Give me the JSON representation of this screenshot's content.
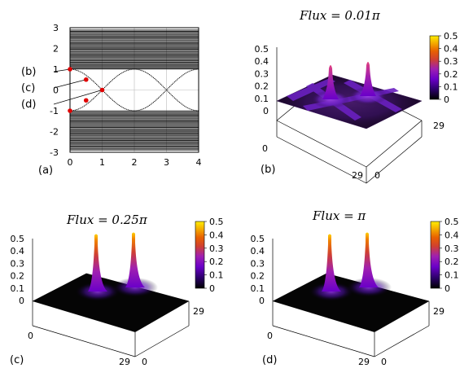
{
  "chart_data": [
    {
      "panel": "(a)",
      "type": "scatter",
      "xlim": [
        0,
        4
      ],
      "ylim": [
        -3,
        3
      ],
      "xticks": [
        "0",
        "1",
        "2",
        "3",
        "4"
      ],
      "yticks": [
        "3",
        "2",
        "1",
        "0",
        "-1",
        "-2",
        "-3"
      ],
      "grid": true,
      "bands": [
        {
          "ymin": 1.0,
          "ymax": 2.9
        },
        {
          "ymin": -2.9,
          "ymax": -1.0
        }
      ],
      "in_gap_states": [
        {
          "x": [
            0,
            1,
            2,
            3,
            4
          ],
          "y": [
            1,
            0,
            -1,
            0,
            1
          ]
        },
        {
          "x": [
            0,
            1,
            2,
            3,
            4
          ],
          "y": [
            -1,
            0,
            1,
            0,
            -1
          ]
        }
      ],
      "markers": [
        {
          "label": "(b)",
          "x": 0.0,
          "y": 1.0
        },
        {
          "label": "(c)",
          "x": 0.5,
          "y": 0.5
        },
        {
          "label": "(d)",
          "x": 1.0,
          "y": 0.0
        },
        {
          "label": "",
          "x": 0.5,
          "y": -0.5
        },
        {
          "label": "",
          "x": 0.0,
          "y": -1.0
        }
      ]
    },
    {
      "panel": "(b)",
      "type": "surface",
      "title": "Flux = 0.01π",
      "zlim": [
        0,
        0.5
      ],
      "zticks": [
        "0.5",
        "0.4",
        "0.3",
        "0.2",
        "0.1",
        "0"
      ],
      "x_range": [
        0,
        29
      ],
      "y_range": [
        0,
        29
      ],
      "axis_tick_labels": [
        "0",
        "29",
        "29",
        "0"
      ],
      "peaks": [
        {
          "height": 0.3
        },
        {
          "height": 0.3
        }
      ],
      "colorbar": {
        "min": 0,
        "max": 0.5,
        "ticks": [
          "0.5",
          "0.4",
          "0.3",
          "0.2",
          "0.1",
          "0"
        ]
      }
    },
    {
      "panel": "(c)",
      "type": "surface",
      "title": "Flux = 0.25π",
      "zlim": [
        0,
        0.5
      ],
      "zticks": [
        "0.5",
        "0.4",
        "0.3",
        "0.2",
        "0.1",
        "0"
      ],
      "x_range": [
        0,
        29
      ],
      "y_range": [
        0,
        29
      ],
      "axis_tick_labels": [
        "0",
        "29",
        "0",
        "29"
      ],
      "peaks": [
        {
          "height": 0.47
        },
        {
          "height": 0.47
        }
      ],
      "colorbar": {
        "min": 0,
        "max": 0.5,
        "ticks": [
          "0.5",
          "0.4",
          "0.3",
          "0.2",
          "0.1",
          "0"
        ]
      }
    },
    {
      "panel": "(d)",
      "type": "surface",
      "title": "Flux = π",
      "zlim": [
        0,
        0.5
      ],
      "zticks": [
        "0.5",
        "0.4",
        "0.3",
        "0.2",
        "0.1",
        "0"
      ],
      "x_range": [
        0,
        29
      ],
      "y_range": [
        0,
        29
      ],
      "axis_tick_labels": [
        "0",
        "29",
        "0",
        "29"
      ],
      "peaks": [
        {
          "height": 0.47
        },
        {
          "height": 0.47
        }
      ],
      "colorbar": {
        "min": 0,
        "max": 0.5,
        "ticks": [
          "0.5",
          "0.4",
          "0.3",
          "0.2",
          "0.1",
          "0"
        ]
      }
    }
  ],
  "colors": {
    "colormap": [
      "#000000",
      "#2a0066",
      "#6a00c8",
      "#a020b0",
      "#d04030",
      "#e86000",
      "#f4a800",
      "#ffee00"
    ],
    "marker": "#e00000",
    "band": "#000000"
  }
}
